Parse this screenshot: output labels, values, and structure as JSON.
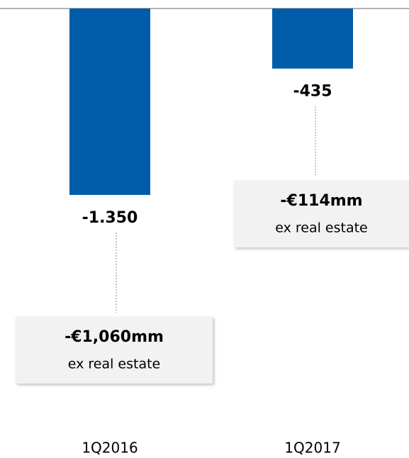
{
  "chart_data": {
    "type": "bar",
    "categories": [
      "1Q2016",
      "1Q2017"
    ],
    "values": [
      -1350,
      -435
    ],
    "value_labels": [
      "-1.350",
      "-435"
    ],
    "color": "#005ca9",
    "ylim": [
      -3250,
      0
    ],
    "annotations": [
      {
        "text": "-€1,060mm",
        "subtext": "ex real estate"
      },
      {
        "text": "-€114mm",
        "subtext": "ex real estate"
      }
    ]
  }
}
